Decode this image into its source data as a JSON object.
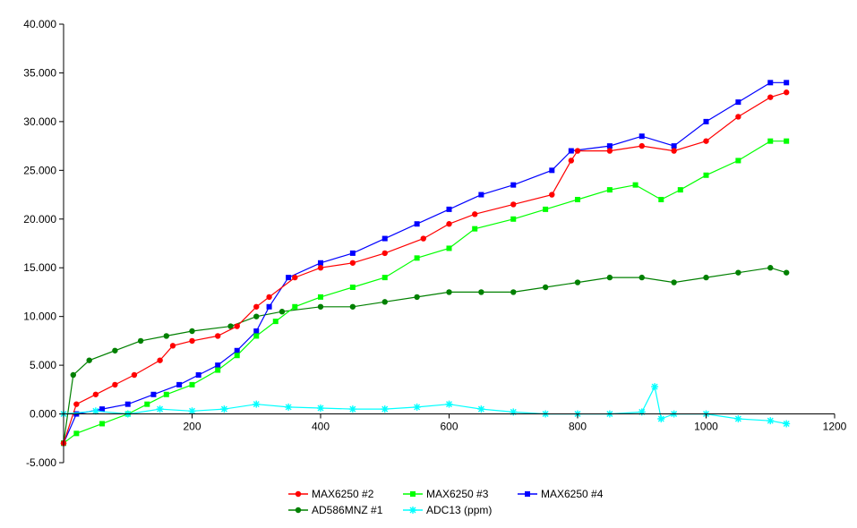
{
  "chart_data": {
    "type": "scatter",
    "title": "",
    "xlabel": "",
    "ylabel": "",
    "xlim": [
      0,
      1200
    ],
    "ylim": [
      -5,
      40
    ],
    "x_ticks": [
      200,
      400,
      600,
      800,
      1000,
      1200
    ],
    "y_ticks": [
      "40.000",
      "35.000",
      "30.000",
      "25.000",
      "20.000",
      "15.000",
      "10.000",
      "5.000",
      "0.000",
      "-5.000"
    ],
    "y_tick_values": [
      40,
      35,
      30,
      25,
      20,
      15,
      10,
      5,
      0,
      -5
    ],
    "grid": false,
    "legend_position": "bottom",
    "series": [
      {
        "name": "MAX6250 #2",
        "color": "#ff0000",
        "marker": "circle",
        "points": [
          [
            0,
            -3
          ],
          [
            20,
            1
          ],
          [
            50,
            2
          ],
          [
            80,
            3
          ],
          [
            110,
            4
          ],
          [
            150,
            5.5
          ],
          [
            170,
            7
          ],
          [
            200,
            7.5
          ],
          [
            240,
            8
          ],
          [
            270,
            9
          ],
          [
            300,
            11
          ],
          [
            320,
            12
          ],
          [
            360,
            14
          ],
          [
            400,
            15
          ],
          [
            450,
            15.5
          ],
          [
            500,
            16.5
          ],
          [
            560,
            18
          ],
          [
            600,
            19.5
          ],
          [
            640,
            20.5
          ],
          [
            700,
            21.5
          ],
          [
            760,
            22.5
          ],
          [
            790,
            26
          ],
          [
            800,
            27
          ],
          [
            850,
            27
          ],
          [
            900,
            27.5
          ],
          [
            950,
            27
          ],
          [
            1000,
            28
          ],
          [
            1050,
            30.5
          ],
          [
            1100,
            32.5
          ],
          [
            1125,
            33
          ]
        ]
      },
      {
        "name": "MAX6250 #3",
        "color": "#00ff00",
        "marker": "square",
        "points": [
          [
            0,
            -3
          ],
          [
            20,
            -2
          ],
          [
            60,
            -1
          ],
          [
            100,
            0
          ],
          [
            130,
            1
          ],
          [
            160,
            2
          ],
          [
            200,
            3
          ],
          [
            240,
            4.5
          ],
          [
            270,
            6
          ],
          [
            300,
            8
          ],
          [
            330,
            9.5
          ],
          [
            360,
            11
          ],
          [
            400,
            12
          ],
          [
            450,
            13
          ],
          [
            500,
            14
          ],
          [
            550,
            16
          ],
          [
            600,
            17
          ],
          [
            640,
            19
          ],
          [
            700,
            20
          ],
          [
            750,
            21
          ],
          [
            800,
            22
          ],
          [
            850,
            23
          ],
          [
            890,
            23.5
          ],
          [
            930,
            22
          ],
          [
            960,
            23
          ],
          [
            1000,
            24.5
          ],
          [
            1050,
            26
          ],
          [
            1100,
            28
          ],
          [
            1125,
            28
          ]
        ]
      },
      {
        "name": "MAX6250 #4",
        "color": "#0000ff",
        "marker": "square",
        "points": [
          [
            0,
            -3
          ],
          [
            20,
            0
          ],
          [
            60,
            0.5
          ],
          [
            100,
            1
          ],
          [
            140,
            2
          ],
          [
            180,
            3
          ],
          [
            210,
            4
          ],
          [
            240,
            5
          ],
          [
            270,
            6.5
          ],
          [
            300,
            8.5
          ],
          [
            320,
            11
          ],
          [
            350,
            14
          ],
          [
            400,
            15.5
          ],
          [
            450,
            16.5
          ],
          [
            500,
            18
          ],
          [
            550,
            19.5
          ],
          [
            600,
            21
          ],
          [
            650,
            22.5
          ],
          [
            700,
            23.5
          ],
          [
            760,
            25
          ],
          [
            790,
            27
          ],
          [
            850,
            27.5
          ],
          [
            900,
            28.5
          ],
          [
            950,
            27.5
          ],
          [
            1000,
            30
          ],
          [
            1050,
            32
          ],
          [
            1100,
            34
          ],
          [
            1125,
            34
          ]
        ]
      },
      {
        "name": "AD586MNZ #1",
        "color": "#008000",
        "marker": "circle",
        "points": [
          [
            0,
            -3
          ],
          [
            15,
            4
          ],
          [
            40,
            5.5
          ],
          [
            80,
            6.5
          ],
          [
            120,
            7.5
          ],
          [
            160,
            8
          ],
          [
            200,
            8.5
          ],
          [
            260,
            9
          ],
          [
            300,
            10
          ],
          [
            340,
            10.5
          ],
          [
            400,
            11
          ],
          [
            450,
            11
          ],
          [
            500,
            11.5
          ],
          [
            550,
            12
          ],
          [
            600,
            12.5
          ],
          [
            650,
            12.5
          ],
          [
            700,
            12.5
          ],
          [
            750,
            13
          ],
          [
            800,
            13.5
          ],
          [
            850,
            14
          ],
          [
            900,
            14
          ],
          [
            950,
            13.5
          ],
          [
            1000,
            14
          ],
          [
            1050,
            14.5
          ],
          [
            1100,
            15
          ],
          [
            1125,
            14.5
          ]
        ]
      },
      {
        "name": "ADC13 (ppm)",
        "color": "#00ffff",
        "marker": "star",
        "points": [
          [
            0,
            0
          ],
          [
            50,
            0.3
          ],
          [
            100,
            0
          ],
          [
            150,
            0.5
          ],
          [
            200,
            0.3
          ],
          [
            250,
            0.5
          ],
          [
            300,
            1
          ],
          [
            350,
            0.7
          ],
          [
            400,
            0.6
          ],
          [
            450,
            0.5
          ],
          [
            500,
            0.5
          ],
          [
            550,
            0.7
          ],
          [
            600,
            1
          ],
          [
            650,
            0.5
          ],
          [
            700,
            0.2
          ],
          [
            750,
            0
          ],
          [
            800,
            0
          ],
          [
            850,
            0
          ],
          [
            900,
            0.2
          ],
          [
            920,
            2.8
          ],
          [
            930,
            -0.5
          ],
          [
            950,
            0
          ],
          [
            1000,
            0
          ],
          [
            1050,
            -0.5
          ],
          [
            1100,
            -0.7
          ],
          [
            1125,
            -1
          ]
        ]
      }
    ]
  }
}
